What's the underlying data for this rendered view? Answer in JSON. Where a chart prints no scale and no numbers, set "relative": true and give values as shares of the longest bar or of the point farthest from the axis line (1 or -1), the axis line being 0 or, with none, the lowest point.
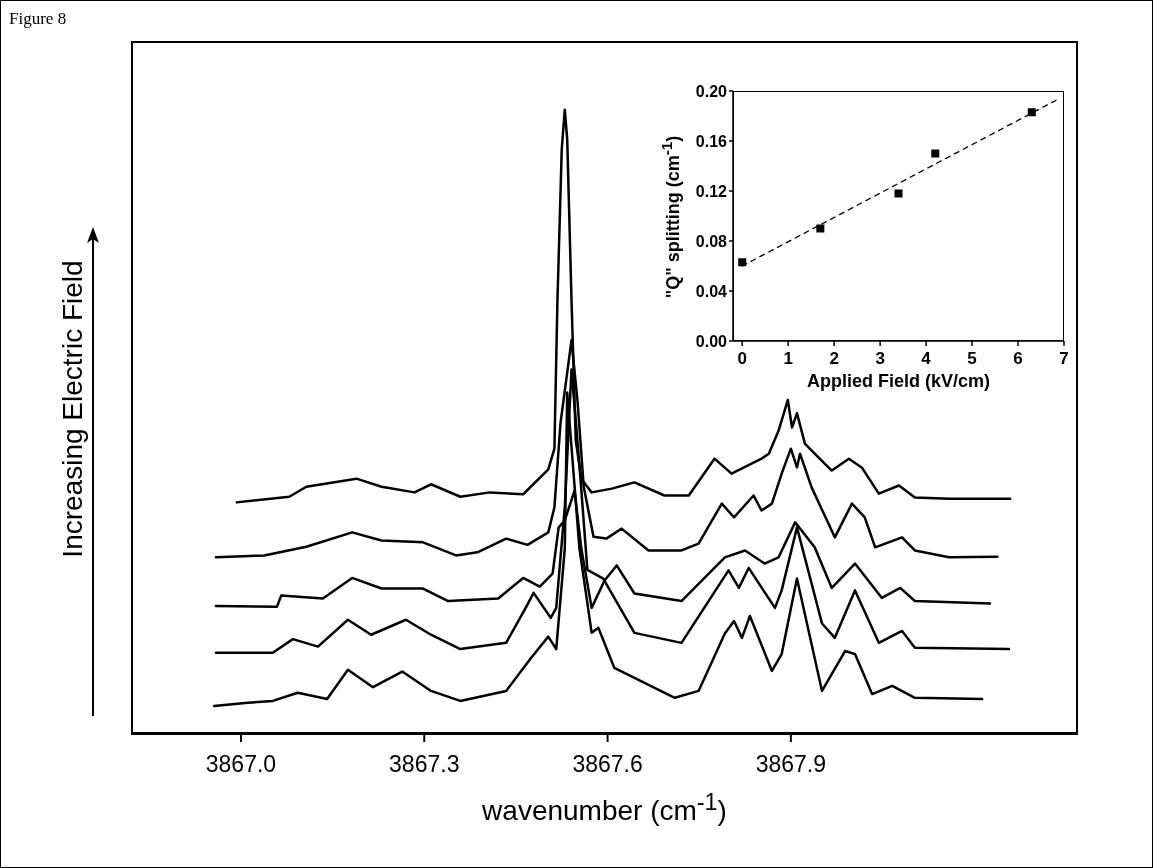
{
  "chart_data": [
    {
      "type": "line",
      "title": "Figure 8",
      "xlabel": "wavenumber (cm$^{-1}$)",
      "ylabel": "Increasing Electric Field",
      "relative": true,
      "xlim": [
        3866.82,
        3868.37
      ],
      "xticks": [
        {
          "value": 3867.0,
          "label": "3867.0"
        },
        {
          "value": 3867.3,
          "label": "3867.3"
        },
        {
          "value": 3867.6,
          "label": "3867.6"
        },
        {
          "value": 3867.9,
          "label": "3867.9"
        }
      ],
      "series": [
        {
          "color": "#000000",
          "x": [
            3866.993,
            3867.079,
            3867.107,
            3867.189,
            3867.23,
            3867.284,
            3867.311,
            3867.359,
            3867.407,
            3867.462,
            3867.503,
            3867.513,
            3867.518,
            3867.525,
            3867.53,
            3867.534,
            3867.541,
            3867.548,
            3867.557,
            3867.574,
            3867.607,
            3867.644,
            3867.693,
            3867.733,
            3867.775,
            3867.803,
            3867.852,
            3867.864,
            3867.88,
            3867.895,
            3867.902,
            3867.91,
            3867.923,
            3867.939,
            3867.967,
            3867.995,
            3868.016,
            3868.044,
            3868.077,
            3868.103,
            3868.159,
            3868.259
          ],
          "values": [
            0.371,
            0.38,
            0.396,
            0.409,
            0.396,
            0.387,
            0.4,
            0.38,
            0.387,
            0.384,
            0.424,
            0.457,
            0.695,
            0.936,
            1.0,
            0.952,
            0.695,
            0.47,
            0.409,
            0.387,
            0.393,
            0.403,
            0.382,
            0.382,
            0.441,
            0.417,
            0.441,
            0.449,
            0.486,
            0.535,
            0.491,
            0.514,
            0.465,
            0.449,
            0.422,
            0.441,
            0.427,
            0.385,
            0.398,
            0.379,
            0.377,
            0.377
          ]
        },
        {
          "color": "#000000",
          "x": [
            3866.959,
            3867.038,
            3867.107,
            3867.182,
            3867.23,
            3867.298,
            3867.352,
            3867.387,
            3867.434,
            3867.469,
            3867.503,
            3867.513,
            3867.523,
            3867.541,
            3867.551,
            3867.561,
            3867.577,
            3867.598,
            3867.623,
            3867.667,
            3867.721,
            3867.749,
            3867.787,
            3867.807,
            3867.839,
            3867.852,
            3867.869,
            3867.885,
            3867.9,
            3867.91,
            3867.915,
            3867.934,
            3867.972,
            3868.0,
            3868.021,
            3868.038,
            3868.082,
            3868.103,
            3868.159,
            3868.238
          ],
          "values": [
            0.283,
            0.286,
            0.3,
            0.323,
            0.31,
            0.307,
            0.286,
            0.291,
            0.313,
            0.303,
            0.323,
            0.363,
            0.498,
            0.631,
            0.531,
            0.396,
            0.316,
            0.313,
            0.329,
            0.294,
            0.294,
            0.305,
            0.369,
            0.347,
            0.382,
            0.358,
            0.369,
            0.417,
            0.457,
            0.427,
            0.449,
            0.395,
            0.315,
            0.369,
            0.347,
            0.299,
            0.315,
            0.294,
            0.283,
            0.284
          ]
        },
        {
          "color": "#000000",
          "x": [
            3866.959,
            3867.059,
            3867.066,
            3867.134,
            3867.182,
            3867.23,
            3867.298,
            3867.339,
            3867.421,
            3867.462,
            3867.489,
            3867.51,
            3867.52,
            3867.53,
            3867.546,
            3867.557,
            3867.574,
            3867.595,
            3867.615,
            3867.644,
            3867.721,
            3867.792,
            3867.825,
            3867.857,
            3867.88,
            3867.907,
            3867.939,
            3867.967,
            3868.005,
            3868.049,
            3868.079,
            3868.103,
            3868.226
          ],
          "values": [
            0.205,
            0.204,
            0.222,
            0.217,
            0.25,
            0.233,
            0.233,
            0.213,
            0.217,
            0.25,
            0.236,
            0.257,
            0.331,
            0.342,
            0.39,
            0.297,
            0.202,
            0.246,
            0.27,
            0.225,
            0.213,
            0.283,
            0.294,
            0.273,
            0.283,
            0.339,
            0.299,
            0.234,
            0.273,
            0.218,
            0.234,
            0.213,
            0.209
          ]
        },
        {
          "color": "#000000",
          "x": [
            3866.959,
            3867.052,
            3867.085,
            3867.126,
            3867.175,
            3867.213,
            3867.27,
            3867.311,
            3867.359,
            3867.434,
            3867.466,
            3867.479,
            3867.507,
            3867.516,
            3867.53,
            3867.541,
            3867.554,
            3867.567,
            3867.593,
            3867.644,
            3867.721,
            3867.798,
            3867.815,
            3867.831,
            3867.874,
            3867.885,
            3867.91,
            3867.951,
            3867.972,
            3868.005,
            3868.044,
            3868.082,
            3868.103,
            3868.257
          ],
          "values": [
            0.13,
            0.13,
            0.152,
            0.14,
            0.183,
            0.159,
            0.183,
            0.159,
            0.136,
            0.146,
            0.202,
            0.226,
            0.186,
            0.202,
            0.363,
            0.584,
            0.43,
            0.263,
            0.249,
            0.162,
            0.146,
            0.262,
            0.234,
            0.266,
            0.202,
            0.23,
            0.331,
            0.177,
            0.154,
            0.23,
            0.146,
            0.165,
            0.138,
            0.136
          ]
        },
        {
          "color": "#000000",
          "x": [
            3866.956,
            3867.011,
            3867.052,
            3867.093,
            3867.141,
            3867.175,
            3867.216,
            3867.264,
            3867.311,
            3867.359,
            3867.434,
            3867.475,
            3867.503,
            3867.516,
            3867.53,
            3867.534,
            3867.554,
            3867.574,
            3867.585,
            3867.611,
            3867.71,
            3867.749,
            3867.792,
            3867.807,
            3867.82,
            3867.833,
            3867.869,
            3867.885,
            3867.91,
            3867.951,
            3867.989,
            3868.005,
            3868.033,
            3868.066,
            3868.103,
            3868.213
          ],
          "values": [
            0.045,
            0.05,
            0.053,
            0.066,
            0.056,
            0.103,
            0.075,
            0.1,
            0.069,
            0.053,
            0.069,
            0.122,
            0.156,
            0.136,
            0.297,
            0.547,
            0.297,
            0.162,
            0.17,
            0.106,
            0.058,
            0.069,
            0.161,
            0.181,
            0.154,
            0.189,
            0.101,
            0.128,
            0.249,
            0.069,
            0.133,
            0.128,
            0.064,
            0.077,
            0.058,
            0.056
          ]
        }
      ]
    },
    {
      "type": "scatter",
      "xlabel": "Applied Field (kV/cm)",
      "ylabel": "\"Q\" splitting (cm$^{-1}$)",
      "xlim": [
        -0.2,
        7
      ],
      "xticks": [
        0,
        1,
        2,
        3,
        4,
        5,
        6,
        7
      ],
      "ylim": [
        0,
        0.2
      ],
      "yticks": [
        {
          "value": 0,
          "label": "0.00"
        },
        {
          "value": 0.04,
          "label": "0.04"
        },
        {
          "value": 0.08,
          "label": "0.08"
        },
        {
          "value": 0.12,
          "label": "0.12"
        },
        {
          "value": 0.16,
          "label": "0.16"
        },
        {
          "value": 0.2,
          "label": "0.20"
        }
      ],
      "series": [
        {
          "type": "scatter",
          "marker": "square",
          "color": "#000000",
          "x": [
            0,
            1.7,
            3.4,
            4.2,
            6.3
          ],
          "values": [
            0.063,
            0.09,
            0.118,
            0.15,
            0.183
          ]
        },
        {
          "type": "line",
          "line_style": "dashed",
          "color": "#000000",
          "x": [
            0,
            6.9
          ],
          "values": [
            0.06,
            0.194
          ]
        }
      ]
    }
  ]
}
